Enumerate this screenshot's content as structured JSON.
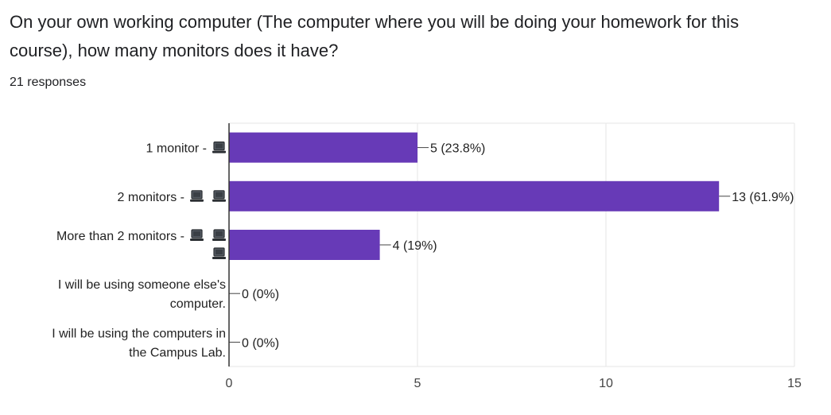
{
  "question": {
    "title": "On your own working computer (The computer where you will be doing your homework for this course), how many monitors does it have?",
    "responses": "21 responses"
  },
  "colors": {
    "bar": "#673ab7",
    "grid": "#e6e6e6",
    "axis": "#333333",
    "text": "#202124"
  },
  "chart_data": {
    "type": "bar",
    "orientation": "horizontal",
    "categories": [
      {
        "lines": [
          "1 monitor - "
        ],
        "icons": 1
      },
      {
        "lines": [
          "2 monitors - "
        ],
        "icons": 2
      },
      {
        "lines": [
          "More than 2 monitors - ",
          ""
        ],
        "icons": 3
      },
      {
        "lines": [
          "I will be using someone else's",
          "computer."
        ],
        "icons": 0
      },
      {
        "lines": [
          "I will be using the computers in",
          "the Campus Lab."
        ],
        "icons": 0
      }
    ],
    "category_icon": "laptop-icon",
    "values": [
      5,
      13,
      4,
      0,
      0
    ],
    "value_labels": [
      "5 (23.8%)",
      "13 (61.9%)",
      "4 (19%)",
      "0 (0%)",
      "0 (0%)"
    ],
    "xlim": [
      0,
      15
    ],
    "xticks": [
      "0",
      "5",
      "10",
      "15"
    ],
    "grid": true
  }
}
